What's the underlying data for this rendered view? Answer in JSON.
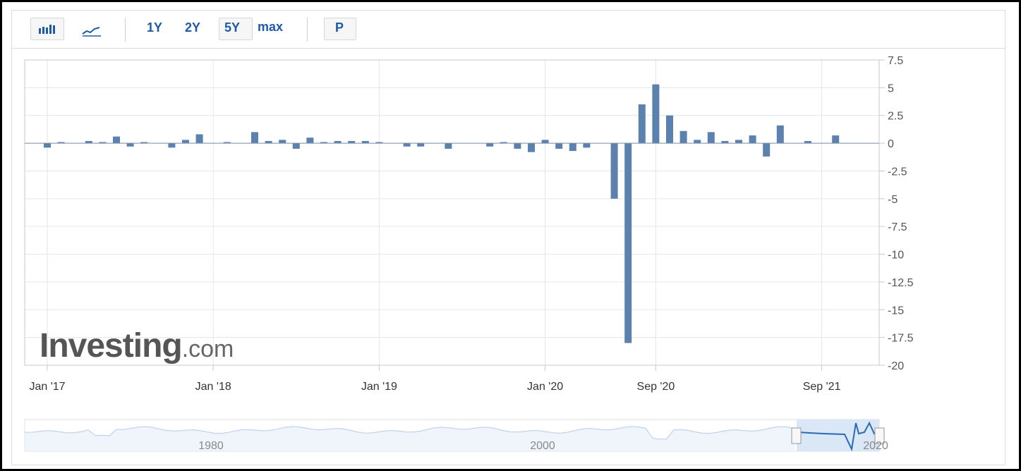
{
  "toolbar": {
    "range_1y": "1Y",
    "range_2y": "2Y",
    "range_5y": "5Y",
    "range_max": "max",
    "p_label": "P",
    "active_range": "5Y"
  },
  "watermark": {
    "brand": "Investing",
    "suffix": ".com"
  },
  "colors": {
    "bar": "#5b82ae",
    "grid": "#e6e6e6",
    "axis_text": "#555555",
    "accent": "#1f5aa6"
  },
  "navigator": {
    "labels": [
      "1980",
      "2000",
      "2020"
    ]
  },
  "chart_data": {
    "type": "bar",
    "title": "",
    "xlabel": "",
    "ylabel": "",
    "ylim": [
      -20,
      7.5
    ],
    "yticks": [
      7.5,
      5,
      2.5,
      0,
      -2.5,
      -5,
      -7.5,
      -10,
      -12.5,
      -15,
      -17.5,
      -20
    ],
    "xtick_labels": [
      "Jan '17",
      "Jan '18",
      "Jan '19",
      "Jan '20",
      "Sep '20",
      "Sep '21"
    ],
    "y_axis_side": "right",
    "grid": true,
    "categories": [
      "Jan 17",
      "Feb 17",
      "Mar 17",
      "Apr 17",
      "May 17",
      "Jun 17",
      "Jul 17",
      "Aug 17",
      "Sep 17",
      "Oct 17",
      "Nov 17",
      "Dec 17",
      "Jan 18",
      "Feb 18",
      "Mar 18",
      "Apr 18",
      "May 18",
      "Jun 18",
      "Jul 18",
      "Aug 18",
      "Sep 18",
      "Oct 18",
      "Nov 18",
      "Dec 18",
      "Jan 19",
      "Feb 19",
      "Mar 19",
      "Apr 19",
      "May 19",
      "Jun 19",
      "Jul 19",
      "Aug 19",
      "Sep 19",
      "Oct 19",
      "Nov 19",
      "Dec 19",
      "Jan 20",
      "Feb 20",
      "Mar 20",
      "Apr 20",
      "May 20",
      "Jun 20",
      "Jul 20",
      "Aug 20",
      "Sep 20",
      "Oct 20",
      "Nov 20",
      "Dec 20",
      "Jan 21",
      "Feb 21",
      "Mar 21",
      "Apr 21",
      "May 21",
      "Jun 21",
      "Jul 21",
      "Aug 21",
      "Sep 21",
      "Oct 21"
    ],
    "values": [
      -0.4,
      0.1,
      0,
      0.2,
      0.1,
      0.6,
      -0.3,
      0.1,
      0,
      -0.4,
      0.3,
      0.8,
      0,
      0.1,
      0,
      1.0,
      0.2,
      0.3,
      -0.5,
      0.5,
      0.1,
      0.2,
      0.2,
      0.2,
      0.1,
      0,
      -0.3,
      -0.3,
      0,
      -0.5,
      0,
      0,
      -0.3,
      0.1,
      -0.5,
      -0.8,
      0.3,
      -0.5,
      -0.7,
      -0.4,
      0,
      -5.0,
      -18.0,
      3.5,
      5.3,
      2.5,
      1.1,
      0.3,
      1.0,
      0.2,
      0.3,
      0.7,
      -1.2,
      1.6,
      0,
      0.2,
      0,
      0.7
    ]
  }
}
